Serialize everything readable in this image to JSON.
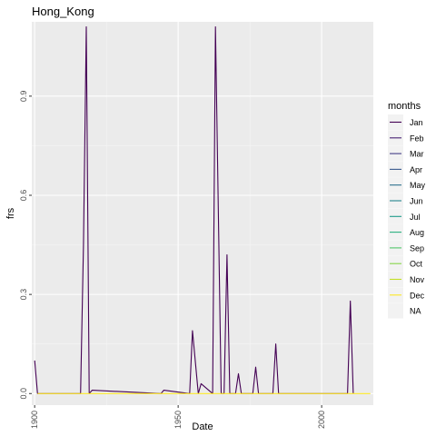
{
  "chart_data": {
    "type": "line",
    "title": "Hong_Kong",
    "xlabel": "Date",
    "ylabel": "frs",
    "x_ticks": [
      "1900",
      "1950",
      "2000"
    ],
    "y_ticks": [
      "0.0",
      "0.3",
      "0.6",
      "0.9"
    ],
    "xlim": [
      1899,
      2018
    ],
    "ylim": [
      -0.035,
      1.125
    ],
    "grid": true,
    "legend": {
      "title": "months",
      "position": "right",
      "entries": [
        "Jan",
        "Feb",
        "Mar",
        "Apr",
        "May",
        "Jun",
        "Jul",
        "Aug",
        "Sep",
        "Oct",
        "Nov",
        "Dec",
        "NA"
      ],
      "colors": [
        "#440154",
        "#482173",
        "#433e85",
        "#38598c",
        "#2d708e",
        "#25858e",
        "#1e9b8a",
        "#2ab07f",
        "#51c56a",
        "#86d549",
        "#c2df23",
        "#fde725",
        "#7f7f7f"
      ]
    },
    "series": [
      {
        "color": "#440154",
        "x": [
          1900,
          1901,
          1916,
          1917,
          1918,
          1919,
          1920,
          1944,
          1945,
          1954,
          1955,
          1957,
          1958,
          1962,
          1963,
          1965,
          1966,
          1967,
          1968,
          1970,
          1971,
          1972,
          1976,
          1977,
          1978,
          1983,
          1984,
          1985,
          2009,
          2010,
          2011
        ],
        "y": [
          0.1,
          0.0,
          0.0,
          0.45,
          1.11,
          0.0,
          0.01,
          0.0,
          0.01,
          0.0,
          0.19,
          0.0,
          0.03,
          0.0,
          1.11,
          0.0,
          0.0,
          0.42,
          0.0,
          0.0,
          0.06,
          0.0,
          0.0,
          0.08,
          0.0,
          0.0,
          0.15,
          0.0,
          0.0,
          0.28,
          0.0
        ]
      },
      {
        "color": "#fde725",
        "x": [
          1901,
          2017
        ],
        "y": [
          0.0,
          0.0
        ]
      }
    ]
  }
}
